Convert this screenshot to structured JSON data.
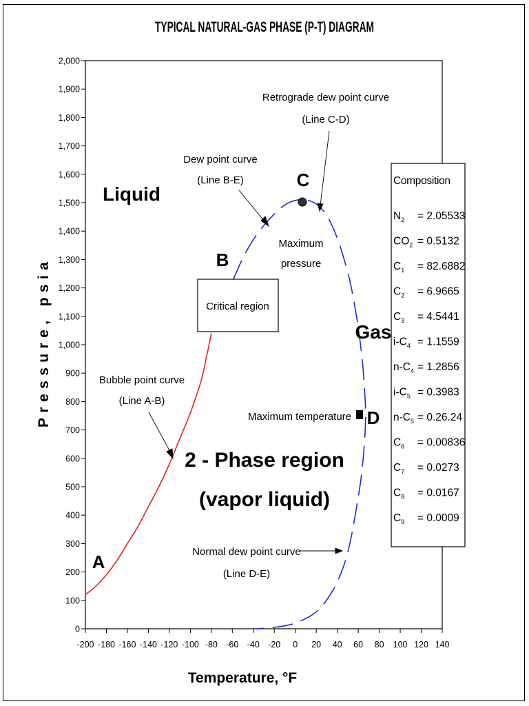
{
  "chart_data": {
    "type": "line",
    "title": "TYPICAL NATURAL-GAS PHASE (P-T) DIAGRAM",
    "xlabel": "Temperature, °F",
    "ylabel": "Pressure, psia",
    "xlim": [
      -200,
      140
    ],
    "ylim": [
      0,
      2000
    ],
    "xticks": [
      -200,
      -180,
      -160,
      -140,
      -120,
      -100,
      -80,
      -60,
      -40,
      -20,
      0,
      20,
      40,
      60,
      80,
      100,
      120,
      140
    ],
    "yticks": [
      0,
      100,
      200,
      300,
      400,
      500,
      600,
      700,
      800,
      900,
      1000,
      1100,
      1200,
      1300,
      1400,
      1500,
      1600,
      1700,
      1800,
      1900,
      2000
    ],
    "grid": false,
    "series": [
      {
        "label": "Bubble point curve (Line A-B)",
        "color": "#e8201a",
        "style": "solid",
        "x": [
          -200,
          -190,
          -180,
          -170,
          -160,
          -150,
          -140,
          -130,
          -120,
          -110,
          -100,
          -90,
          -85,
          -80
        ],
        "y": [
          120,
          150,
          190,
          240,
          300,
          360,
          430,
          500,
          580,
          670,
          760,
          870,
          950,
          1040
        ]
      },
      {
        "label": "Dew point curve",
        "color": "#1a2fd8",
        "style": "dashed",
        "x": [
          -59,
          -50,
          -40,
          -30,
          -20,
          -10,
          0,
          10,
          20,
          30,
          40,
          50,
          55,
          60,
          64,
          66,
          67,
          66,
          63,
          58,
          52,
          45,
          35,
          20,
          0,
          -20,
          -38
        ],
        "y": [
          1230,
          1305,
          1370,
          1420,
          1460,
          1492,
          1508,
          1510,
          1495,
          1455,
          1375,
          1255,
          1170,
          1060,
          940,
          840,
          760,
          660,
          540,
          420,
          300,
          210,
          130,
          60,
          20,
          5,
          0
        ]
      }
    ],
    "points": [
      {
        "label": "C",
        "x": 10,
        "y": 1510,
        "marker": "circle"
      },
      {
        "label": "D",
        "x": 67,
        "y": 760,
        "marker": "square"
      }
    ],
    "annotations": {
      "point_A": "A",
      "point_B": "B",
      "point_C": "C",
      "point_D": "D",
      "liquid": "Liquid",
      "gas": "Gas",
      "two_phase_1": "2 - Phase region",
      "two_phase_2": "(vapor liquid)",
      "critical_region": "Critical region",
      "max_pressure_1": "Maximum",
      "max_pressure_2": "pressure",
      "max_temperature": "Maximum temperature",
      "bubble_1": "Bubble point curve",
      "bubble_2": "(Line A-B)",
      "dew_1": "Dew point curve",
      "dew_2": "(Line B-E)",
      "retro_1": "Retrograde dew point curve",
      "retro_2": "(Line C-D)",
      "normal_1": "Normal dew point curve",
      "normal_2": "(Line D-E)"
    },
    "composition": {
      "title": "Composition",
      "rows": [
        {
          "name": "N",
          "sub": "2",
          "value": "= 2.05533"
        },
        {
          "name": "CO",
          "sub": "2",
          "value": "= 0.5132"
        },
        {
          "name": "C",
          "sub": "1",
          "value": "= 82.6882"
        },
        {
          "name": "C",
          "sub": "2",
          "value": "= 6.9665"
        },
        {
          "name": "C",
          "sub": "3",
          "value": "= 4.5441"
        },
        {
          "name": "i-C",
          "sub": "4",
          "value": "= 1.1559"
        },
        {
          "name": "n-C",
          "sub": "4",
          "value": "= 1.2856"
        },
        {
          "name": "i-C",
          "sub": "5",
          "value": "= 0.3983"
        },
        {
          "name": "n-C",
          "sub": "5",
          "value": "= 0.26.24"
        },
        {
          "name": "C",
          "sub": "6",
          "value": "= 0.00836"
        },
        {
          "name": "C",
          "sub": "7",
          "value": "= 0.0273"
        },
        {
          "name": "C",
          "sub": "8",
          "value": "= 0.0167"
        },
        {
          "name": "C",
          "sub": "9",
          "value": "= 0.0009"
        }
      ]
    }
  }
}
